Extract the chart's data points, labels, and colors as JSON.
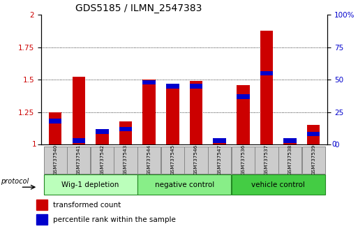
{
  "title": "GDS5185 / ILMN_2547383",
  "samples": [
    "GSM737540",
    "GSM737541",
    "GSM737542",
    "GSM737543",
    "GSM737544",
    "GSM737545",
    "GSM737546",
    "GSM737547",
    "GSM737536",
    "GSM737537",
    "GSM737538",
    "GSM737539"
  ],
  "transformed_count": [
    1.25,
    1.52,
    1.12,
    1.18,
    1.5,
    1.47,
    1.49,
    1.01,
    1.46,
    1.88,
    1.01,
    1.15
  ],
  "percentile_rank": [
    18,
    3,
    10,
    12,
    48,
    45,
    45,
    3,
    37,
    55,
    3,
    8
  ],
  "groups": [
    {
      "label": "Wig-1 depletion",
      "indices": [
        0,
        1,
        2,
        3
      ],
      "color": "#bbffbb"
    },
    {
      "label": "negative control",
      "indices": [
        4,
        5,
        6,
        7
      ],
      "color": "#88ee88"
    },
    {
      "label": "vehicle control",
      "indices": [
        8,
        9,
        10,
        11
      ],
      "color": "#44cc44"
    }
  ],
  "red_color": "#cc0000",
  "blue_color": "#0000cc",
  "bar_width": 0.55,
  "ylim_left": [
    1.0,
    2.0
  ],
  "ylim_right": [
    0,
    100
  ],
  "yticks_left": [
    1.0,
    1.25,
    1.5,
    1.75,
    2.0
  ],
  "yticks_right": [
    0,
    25,
    50,
    75,
    100
  ],
  "title_fontsize": 10,
  "background_color": "#ffffff",
  "protocol_label": "protocol",
  "legend1": "transformed count",
  "legend2": "percentile rank within the sample"
}
